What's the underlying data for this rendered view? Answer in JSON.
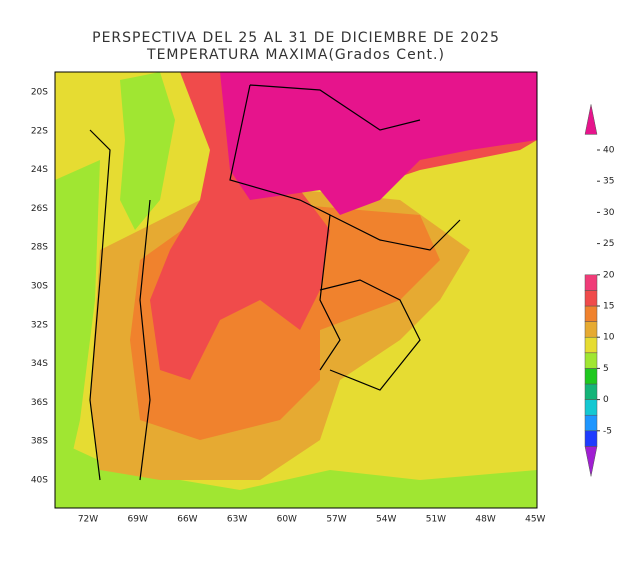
{
  "title": "PERSPECTIVA DEL 25 AL 31 DE DICIEMBRE DE 2025",
  "subtitle": "TEMPERATURA MAXIMA(Grados Cent.)",
  "latitude_labels": [
    "20S",
    "22S",
    "24S",
    "26S",
    "28S",
    "30S",
    "32S",
    "34S",
    "36S",
    "38S",
    "40S"
  ],
  "longitude_labels": [
    "72W",
    "69W",
    "66W",
    "63W",
    "60W",
    "57W",
    "54W",
    "51W",
    "48W",
    "45W"
  ],
  "colorbar": {
    "ticks": [
      -5,
      0,
      5,
      10,
      15,
      20,
      25,
      30,
      35,
      40
    ],
    "colors": [
      "#a01ed2",
      "#1e3cff",
      "#1e96ff",
      "#14c8d2",
      "#14b478",
      "#1ec81e",
      "#a0e632",
      "#e6dc32",
      "#e6aa32",
      "#f0822d",
      "#f04b4b",
      "#f03c78",
      "#e6148c"
    ]
  }
}
